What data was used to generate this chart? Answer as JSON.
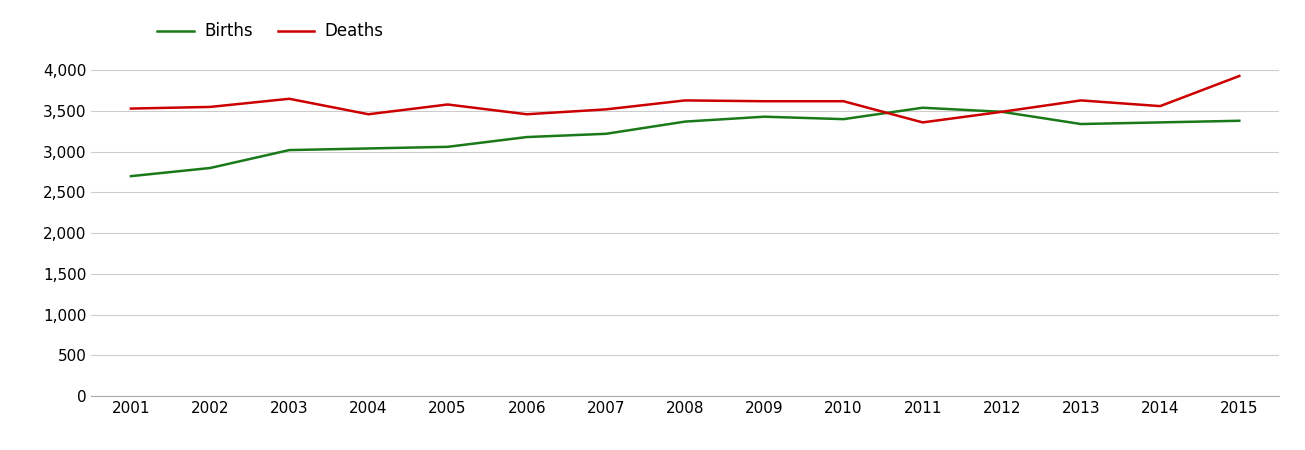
{
  "years": [
    2001,
    2002,
    2003,
    2004,
    2005,
    2006,
    2007,
    2008,
    2009,
    2010,
    2011,
    2012,
    2013,
    2014,
    2015
  ],
  "births": [
    2700,
    2800,
    3020,
    3040,
    3060,
    3180,
    3220,
    3370,
    3430,
    3400,
    3540,
    3490,
    3340,
    3360,
    3380
  ],
  "deaths": [
    3530,
    3550,
    3650,
    3460,
    3580,
    3460,
    3520,
    3630,
    3620,
    3620,
    3360,
    3490,
    3630,
    3560,
    3930
  ],
  "births_color": "#1a7a1a",
  "deaths_color": "#cc0000",
  "line_width": 1.8,
  "legend_labels": [
    "Births",
    "Deaths"
  ],
  "ylim": [
    0,
    4200
  ],
  "yticks": [
    0,
    500,
    1000,
    1500,
    2000,
    2500,
    3000,
    3500,
    4000
  ],
  "background_color": "#ffffff",
  "grid_color": "#cccccc",
  "tick_fontsize": 11,
  "legend_fontsize": 12
}
